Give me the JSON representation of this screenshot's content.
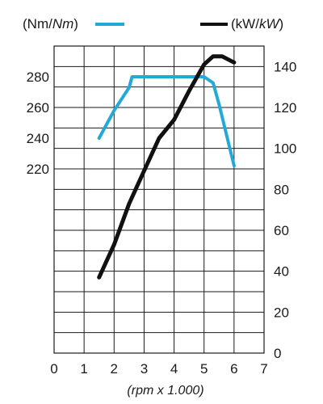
{
  "chart_data": {
    "type": "line",
    "xlabel": "(rpm x 1.000)",
    "x_ticks": [
      "0",
      "1",
      "2",
      "3",
      "4",
      "5",
      "6",
      "7"
    ],
    "xlim": [
      0,
      7
    ],
    "left_axis": {
      "unit_label_parts": [
        "(Nm/",
        "Nm",
        ")"
      ],
      "ticks": [
        "280",
        "260",
        "240",
        "220"
      ],
      "ylim": [
        100,
        300
      ]
    },
    "right_axis": {
      "unit_label_parts": [
        "(kW/",
        "kW",
        ")"
      ],
      "ticks": [
        "140",
        "120",
        "100",
        "80",
        "60",
        "40",
        "20",
        "0"
      ],
      "ylim": [
        0,
        150
      ]
    },
    "series": [
      {
        "name": "Nm",
        "axis": "left",
        "color": "#22a9d8",
        "points": [
          [
            1.5,
            240
          ],
          [
            2.0,
            258
          ],
          [
            2.5,
            273
          ],
          [
            2.6,
            280
          ],
          [
            5.0,
            280
          ],
          [
            5.3,
            276
          ],
          [
            5.5,
            262
          ],
          [
            6.0,
            222
          ]
        ]
      },
      {
        "name": "kW",
        "axis": "right",
        "color": "#111111",
        "points": [
          [
            1.5,
            37
          ],
          [
            2.0,
            53
          ],
          [
            2.5,
            73
          ],
          [
            3.0,
            89
          ],
          [
            3.5,
            105
          ],
          [
            4.0,
            114
          ],
          [
            4.5,
            128
          ],
          [
            5.0,
            141
          ],
          [
            5.3,
            145
          ],
          [
            5.6,
            145
          ],
          [
            6.0,
            142
          ]
        ]
      }
    ],
    "grid": true
  }
}
